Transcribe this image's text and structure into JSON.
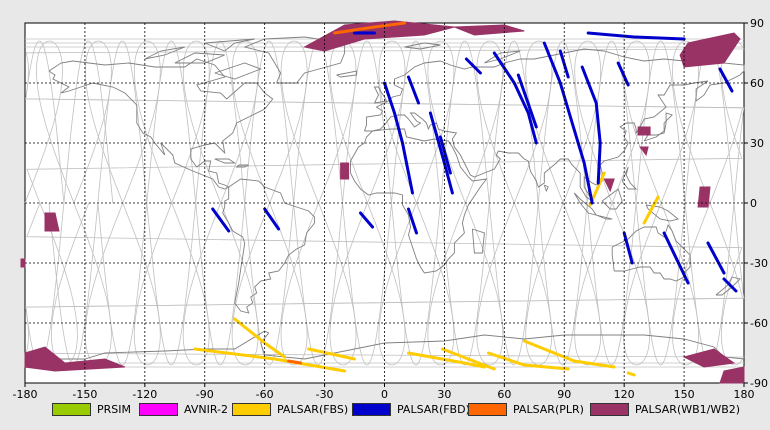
{
  "axes": {
    "x_ticks": [
      "-180",
      "-150",
      "-120",
      "-90",
      "-60",
      "-30",
      "0",
      "30",
      "60",
      "90",
      "120",
      "150",
      "180"
    ],
    "y_ticks": [
      "90",
      "60",
      "30",
      "0",
      "-30",
      "-60",
      "-90"
    ],
    "x_range": [
      -180,
      180
    ],
    "y_range": [
      -90,
      90
    ],
    "grid": "dashed"
  },
  "legend": {
    "items": [
      {
        "label": "PRSIM",
        "color": "#99cc00"
      },
      {
        "label": "AVNIR-2",
        "color": "#ff00ff"
      },
      {
        "label": "PALSAR(FBS)",
        "color": "#ffcc00"
      },
      {
        "label": "PALSAR(FBD)",
        "color": "#0000cc"
      },
      {
        "label": "PALSAR(PLR)",
        "color": "#ff6600"
      },
      {
        "label": "PALSAR(WB1/WB2)",
        "color": "#993366"
      }
    ]
  },
  "colors": {
    "background": "#ffffff",
    "coast": "#808080",
    "orbit": "#c0c0c0",
    "grid": "#000000"
  },
  "swaths": {
    "fbd": [
      [
        [
          -86,
          -3
        ],
        [
          -78,
          -14
        ]
      ],
      [
        [
          -60,
          -3
        ],
        [
          -53,
          -13
        ]
      ],
      [
        [
          -15,
          85
        ],
        [
          -5,
          85
        ]
      ],
      [
        [
          -12,
          -5
        ],
        [
          -6,
          -12
        ]
      ],
      [
        [
          0,
          60
        ],
        [
          5,
          45
        ],
        [
          9,
          30
        ],
        [
          12,
          15
        ],
        [
          14,
          5
        ]
      ],
      [
        [
          12,
          63
        ],
        [
          17,
          50
        ]
      ],
      [
        [
          23,
          45
        ],
        [
          30,
          20
        ],
        [
          34,
          5
        ]
      ],
      [
        [
          28,
          33
        ],
        [
          33,
          15
        ]
      ],
      [
        [
          12,
          -3
        ],
        [
          16,
          -15
        ]
      ],
      [
        [
          41,
          72
        ],
        [
          48,
          65
        ]
      ],
      [
        [
          55,
          75
        ],
        [
          65,
          60
        ],
        [
          72,
          45
        ],
        [
          76,
          30
        ]
      ],
      [
        [
          67,
          64
        ],
        [
          76,
          38
        ]
      ],
      [
        [
          80,
          80
        ],
        [
          88,
          60
        ],
        [
          94,
          40
        ],
        [
          100,
          20
        ],
        [
          104,
          0
        ]
      ],
      [
        [
          99,
          68
        ],
        [
          106,
          50
        ],
        [
          108,
          30
        ],
        [
          107,
          10
        ]
      ],
      [
        [
          117,
          70
        ],
        [
          122,
          59
        ]
      ],
      [
        [
          88,
          76
        ],
        [
          92,
          63
        ]
      ],
      [
        [
          102,
          85
        ],
        [
          125,
          83
        ],
        [
          150,
          82
        ]
      ],
      [
        [
          120,
          -15
        ],
        [
          124,
          -30
        ]
      ],
      [
        [
          140,
          -15
        ],
        [
          152,
          -40
        ]
      ],
      [
        [
          162,
          -20
        ],
        [
          170,
          -35
        ]
      ],
      [
        [
          168,
          67
        ],
        [
          174,
          56
        ]
      ],
      [
        [
          170,
          -38
        ],
        [
          176,
          -44
        ]
      ]
    ],
    "fbs": [
      [
        [
          -75,
          -58
        ],
        [
          -60,
          -70
        ]
      ],
      [
        [
          -60,
          -70
        ],
        [
          -50,
          -77
        ]
      ],
      [
        [
          -95,
          -73
        ],
        [
          -55,
          -78
        ],
        [
          -20,
          -84
        ]
      ],
      [
        [
          -38,
          -73
        ],
        [
          -15,
          -78
        ]
      ],
      [
        [
          12,
          -75
        ],
        [
          40,
          -80
        ],
        [
          50,
          -82
        ]
      ],
      [
        [
          29,
          -73
        ],
        [
          55,
          -83
        ]
      ],
      [
        [
          52,
          -75
        ],
        [
          70,
          -81
        ],
        [
          92,
          -83
        ]
      ],
      [
        [
          70,
          -69
        ],
        [
          95,
          -79
        ],
        [
          115,
          -82
        ]
      ],
      [
        [
          103,
          -1
        ],
        [
          110,
          15
        ]
      ],
      [
        [
          130,
          -10
        ],
        [
          137,
          3
        ]
      ],
      [
        [
          122,
          -85
        ],
        [
          125,
          -86
        ]
      ]
    ],
    "plr": [
      [
        [
          -25,
          85
        ],
        [
          -5,
          88
        ],
        [
          10,
          90
        ]
      ],
      [
        [
          -48,
          -79
        ],
        [
          -42,
          -80
        ]
      ]
    ],
    "wb": [
      [
        [
          -170,
          -5
        ],
        [
          -165,
          -5
        ],
        [
          -163,
          -14
        ],
        [
          -170,
          -14
        ]
      ],
      [
        [
          -182,
          -28
        ],
        [
          -180,
          -28
        ],
        [
          -180,
          -32
        ],
        [
          -182,
          -32
        ]
      ],
      [
        [
          -180,
          -75
        ],
        [
          -170,
          -72
        ],
        [
          -160,
          -80
        ],
        [
          -140,
          -78
        ],
        [
          -130,
          -82
        ],
        [
          -165,
          -84
        ],
        [
          -180,
          -82
        ]
      ],
      [
        [
          -40,
          78
        ],
        [
          -20,
          89
        ],
        [
          5,
          91
        ],
        [
          35,
          88
        ],
        [
          20,
          84
        ],
        [
          -10,
          82
        ],
        [
          -30,
          76
        ]
      ],
      [
        [
          35,
          88
        ],
        [
          60,
          89
        ],
        [
          70,
          86
        ],
        [
          45,
          84
        ]
      ],
      [
        [
          -22,
          20
        ],
        [
          -18,
          20
        ],
        [
          -18,
          12
        ],
        [
          -22,
          12
        ]
      ],
      [
        [
          127,
          38
        ],
        [
          133,
          38
        ],
        [
          133,
          34
        ],
        [
          127,
          34
        ]
      ],
      [
        [
          110,
          12
        ],
        [
          115,
          12
        ],
        [
          113,
          6
        ]
      ],
      [
        [
          128,
          28
        ],
        [
          132,
          28
        ],
        [
          131,
          24
        ]
      ],
      [
        [
          158,
          8
        ],
        [
          163,
          8
        ],
        [
          162,
          -2
        ],
        [
          157,
          -2
        ]
      ],
      [
        [
          148,
          74
        ],
        [
          152,
          80
        ],
        [
          175,
          85
        ],
        [
          178,
          82
        ],
        [
          170,
          70
        ],
        [
          150,
          68
        ]
      ],
      [
        [
          150,
          -77
        ],
        [
          165,
          -73
        ],
        [
          175,
          -80
        ],
        [
          160,
          -82
        ]
      ],
      [
        [
          170,
          -84
        ],
        [
          180,
          -82
        ],
        [
          180,
          -90
        ],
        [
          168,
          -90
        ]
      ]
    ]
  }
}
